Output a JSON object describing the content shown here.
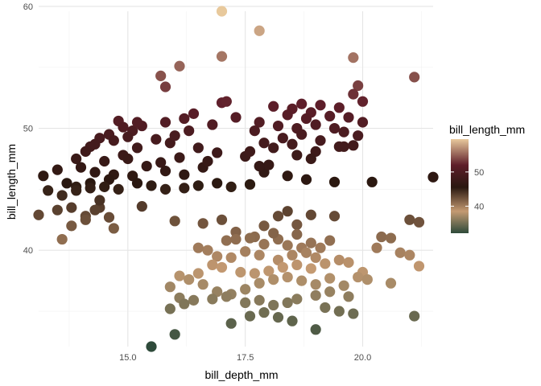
{
  "chart_data": {
    "type": "scatter",
    "title": "",
    "xlabel": "bill_depth_mm",
    "ylabel": "bill_length_mm",
    "xlim": [
      13.1,
      21.5
    ],
    "ylim": [
      32.1,
      59.6
    ],
    "xticks": [
      {
        "value": 15.0,
        "label": "15.0"
      },
      {
        "value": 17.5,
        "label": "17.5"
      },
      {
        "value": 20.0,
        "label": "20.0"
      }
    ],
    "yticks": [
      {
        "value": 40,
        "label": "40"
      },
      {
        "value": 50,
        "label": "50"
      },
      {
        "value": 60,
        "label": "60"
      }
    ],
    "grid": true,
    "legend": {
      "title": "bill_length_mm",
      "placement": "right",
      "ticks": [
        {
          "value": 40,
          "label": "40"
        },
        {
          "value": 50,
          "label": "50"
        }
      ],
      "color_stops": [
        {
          "value": 32.1,
          "color": "#2e4a3a"
        },
        {
          "value": 38.5,
          "color": "#c49a72"
        },
        {
          "value": 45.5,
          "color": "#2a1810"
        },
        {
          "value": 52.0,
          "color": "#5e1e2a"
        },
        {
          "value": 59.6,
          "color": "#e8c99c"
        }
      ]
    },
    "points": [
      [
        17.0,
        59.6
      ],
      [
        17.8,
        58.0
      ],
      [
        19.8,
        55.8
      ],
      [
        17.0,
        55.9
      ],
      [
        16.1,
        55.1
      ],
      [
        15.7,
        54.3
      ],
      [
        15.8,
        53.4
      ],
      [
        21.1,
        54.2
      ],
      [
        19.9,
        53.5
      ],
      [
        19.8,
        52.8
      ],
      [
        20.0,
        52.2
      ],
      [
        17.0,
        52.1
      ],
      [
        17.1,
        52.2
      ],
      [
        18.7,
        52.0
      ],
      [
        18.1,
        51.8
      ],
      [
        19.1,
        51.9
      ],
      [
        18.5,
        51.6
      ],
      [
        19.5,
        51.7
      ],
      [
        18.9,
        51.3
      ],
      [
        18.4,
        51.1
      ],
      [
        19.3,
        51.0
      ],
      [
        18.8,
        50.8
      ],
      [
        19.7,
        50.9
      ],
      [
        20.0,
        50.5
      ],
      [
        17.8,
        50.5
      ],
      [
        18.2,
        50.2
      ],
      [
        19.0,
        50.3
      ],
      [
        18.6,
        50.0
      ],
      [
        19.4,
        50.0
      ],
      [
        19.6,
        49.7
      ],
      [
        18.7,
        49.5
      ],
      [
        19.9,
        49.4
      ],
      [
        18.3,
        49.2
      ],
      [
        19.1,
        49.0
      ],
      [
        17.9,
        48.8
      ],
      [
        18.5,
        48.7
      ],
      [
        19.5,
        48.5
      ],
      [
        19.6,
        48.5
      ],
      [
        19.8,
        48.6
      ],
      [
        18.1,
        48.4
      ],
      [
        19.0,
        48.1
      ],
      [
        18.6,
        47.8
      ],
      [
        18.9,
        47.5
      ],
      [
        17.3,
        50.9
      ],
      [
        17.7,
        49.8
      ],
      [
        16.8,
        50.3
      ],
      [
        16.4,
        51.2
      ],
      [
        16.2,
        50.8
      ],
      [
        15.8,
        50.5
      ],
      [
        15.3,
        50.2
      ],
      [
        15.1,
        49.8
      ],
      [
        14.8,
        50.6
      ],
      [
        14.9,
        50.1
      ],
      [
        15.2,
        50.5
      ],
      [
        14.6,
        49.5
      ],
      [
        15.0,
        49.3
      ],
      [
        14.4,
        49.2
      ],
      [
        14.7,
        49.0
      ],
      [
        14.2,
        48.5
      ],
      [
        15.6,
        49.1
      ],
      [
        15.9,
        48.8
      ],
      [
        16.0,
        49.4
      ],
      [
        16.3,
        49.8
      ],
      [
        16.5,
        48.4
      ],
      [
        16.9,
        48.0
      ],
      [
        16.1,
        47.6
      ],
      [
        15.7,
        47.2
      ],
      [
        15.4,
        46.9
      ],
      [
        15.8,
        46.5
      ],
      [
        16.2,
        46.2
      ],
      [
        16.6,
        46.8
      ],
      [
        16.7,
        47.3
      ],
      [
        15.2,
        48.4
      ],
      [
        14.9,
        47.8
      ],
      [
        15.0,
        47.5
      ],
      [
        14.3,
        48.7
      ],
      [
        14.1,
        48.1
      ],
      [
        13.9,
        47.5
      ],
      [
        14.5,
        47.3
      ],
      [
        14.0,
        46.8
      ],
      [
        14.3,
        46.4
      ],
      [
        14.7,
        46.2
      ],
      [
        15.1,
        46.1
      ],
      [
        14.6,
        45.8
      ],
      [
        14.2,
        45.5
      ],
      [
        13.9,
        45.2
      ],
      [
        13.7,
        45.5
      ],
      [
        13.5,
        46.6
      ],
      [
        13.2,
        46.1
      ],
      [
        13.3,
        44.9
      ],
      [
        13.6,
        44.5
      ],
      [
        13.9,
        44.9
      ],
      [
        14.2,
        45.1
      ],
      [
        14.5,
        45.2
      ],
      [
        14.8,
        45.0
      ],
      [
        15.2,
        45.5
      ],
      [
        15.5,
        45.3
      ],
      [
        15.8,
        45.0
      ],
      [
        16.2,
        45.1
      ],
      [
        16.5,
        45.3
      ],
      [
        16.9,
        45.5
      ],
      [
        17.2,
        45.2
      ],
      [
        17.6,
        45.4
      ],
      [
        14.1,
        42.8
      ],
      [
        13.8,
        43.5
      ],
      [
        13.1,
        42.9
      ],
      [
        13.5,
        43.3
      ],
      [
        13.6,
        40.9
      ],
      [
        13.8,
        42.0
      ],
      [
        14.1,
        42.5
      ],
      [
        14.4,
        43.5
      ],
      [
        14.6,
        42.7
      ],
      [
        14.4,
        44.1
      ],
      [
        14.3,
        43.3
      ],
      [
        14.7,
        41.8
      ],
      [
        15.3,
        43.6
      ],
      [
        16.0,
        42.4
      ],
      [
        16.6,
        42.2
      ],
      [
        17.0,
        42.5
      ],
      [
        17.3,
        41.5
      ],
      [
        17.7,
        41.1
      ],
      [
        17.9,
        42.0
      ],
      [
        18.2,
        42.8
      ],
      [
        18.4,
        43.2
      ],
      [
        18.6,
        42.1
      ],
      [
        18.9,
        42.9
      ],
      [
        19.4,
        42.8
      ],
      [
        20.4,
        41.1
      ],
      [
        21.0,
        42.5
      ],
      [
        21.2,
        42.3
      ],
      [
        21.5,
        46.0
      ],
      [
        20.2,
        45.6
      ],
      [
        19.4,
        45.6
      ],
      [
        18.8,
        45.8
      ],
      [
        18.4,
        46.1
      ],
      [
        17.9,
        46.4
      ],
      [
        18.0,
        47.0
      ],
      [
        17.5,
        47.7
      ],
      [
        17.6,
        48.1
      ],
      [
        17.8,
        46.9
      ],
      [
        18.4,
        40.4
      ],
      [
        18.2,
        40.9
      ],
      [
        18.6,
        41.3
      ],
      [
        18.1,
        41.4
      ],
      [
        17.9,
        40.5
      ],
      [
        18.7,
        40.2
      ],
      [
        18.9,
        40.6
      ],
      [
        19.1,
        40.2
      ],
      [
        19.3,
        40.8
      ],
      [
        18.8,
        39.8
      ],
      [
        19.0,
        39.4
      ],
      [
        18.5,
        39.6
      ],
      [
        18.2,
        39.2
      ],
      [
        17.8,
        39.6
      ],
      [
        17.5,
        39.9
      ],
      [
        17.2,
        39.4
      ],
      [
        16.9,
        39.5
      ],
      [
        16.7,
        40.0
      ],
      [
        16.5,
        40.2
      ],
      [
        17.1,
        40.8
      ],
      [
        17.3,
        40.9
      ],
      [
        17.6,
        41.0
      ],
      [
        16.8,
        38.8
      ],
      [
        17.0,
        38.6
      ],
      [
        17.4,
        38.2
      ],
      [
        17.7,
        38.1
      ],
      [
        18.0,
        38.3
      ],
      [
        18.3,
        38.6
      ],
      [
        18.6,
        38.8
      ],
      [
        18.9,
        38.5
      ],
      [
        19.2,
        38.9
      ],
      [
        19.5,
        39.2
      ],
      [
        19.7,
        39.0
      ],
      [
        20.0,
        38.2
      ],
      [
        20.3,
        40.2
      ],
      [
        20.6,
        41.0
      ],
      [
        20.8,
        39.8
      ],
      [
        21.0,
        39.6
      ],
      [
        21.2,
        38.7
      ],
      [
        16.5,
        38.1
      ],
      [
        16.1,
        37.9
      ],
      [
        15.9,
        37.0
      ],
      [
        16.3,
        37.6
      ],
      [
        16.6,
        37.2
      ],
      [
        16.9,
        36.6
      ],
      [
        17.2,
        36.4
      ],
      [
        17.5,
        36.8
      ],
      [
        17.8,
        37.3
      ],
      [
        18.1,
        37.6
      ],
      [
        18.4,
        37.8
      ],
      [
        18.7,
        37.5
      ],
      [
        19.0,
        37.2
      ],
      [
        19.3,
        37.7
      ],
      [
        19.6,
        37.1
      ],
      [
        19.9,
        37.8
      ],
      [
        20.1,
        37.6
      ],
      [
        20.6,
        37.3
      ],
      [
        16.1,
        36.1
      ],
      [
        16.4,
        35.9
      ],
      [
        16.8,
        36.0
      ],
      [
        17.1,
        36.2
      ],
      [
        17.5,
        35.7
      ],
      [
        17.8,
        35.9
      ],
      [
        18.1,
        35.5
      ],
      [
        18.4,
        35.7
      ],
      [
        18.6,
        36.0
      ],
      [
        19.0,
        36.3
      ],
      [
        19.3,
        36.6
      ],
      [
        19.7,
        36.2
      ],
      [
        17.6,
        34.6
      ],
      [
        17.9,
        34.9
      ],
      [
        18.2,
        34.5
      ],
      [
        18.5,
        34.2
      ],
      [
        19.2,
        35.3
      ],
      [
        19.5,
        35.0
      ],
      [
        21.1,
        34.6
      ],
      [
        17.2,
        34.0
      ],
      [
        16.0,
        33.1
      ],
      [
        15.5,
        32.1
      ],
      [
        19.0,
        33.5
      ],
      [
        15.9,
        35.2
      ],
      [
        16.2,
        35.6
      ],
      [
        19.8,
        34.8
      ]
    ]
  }
}
